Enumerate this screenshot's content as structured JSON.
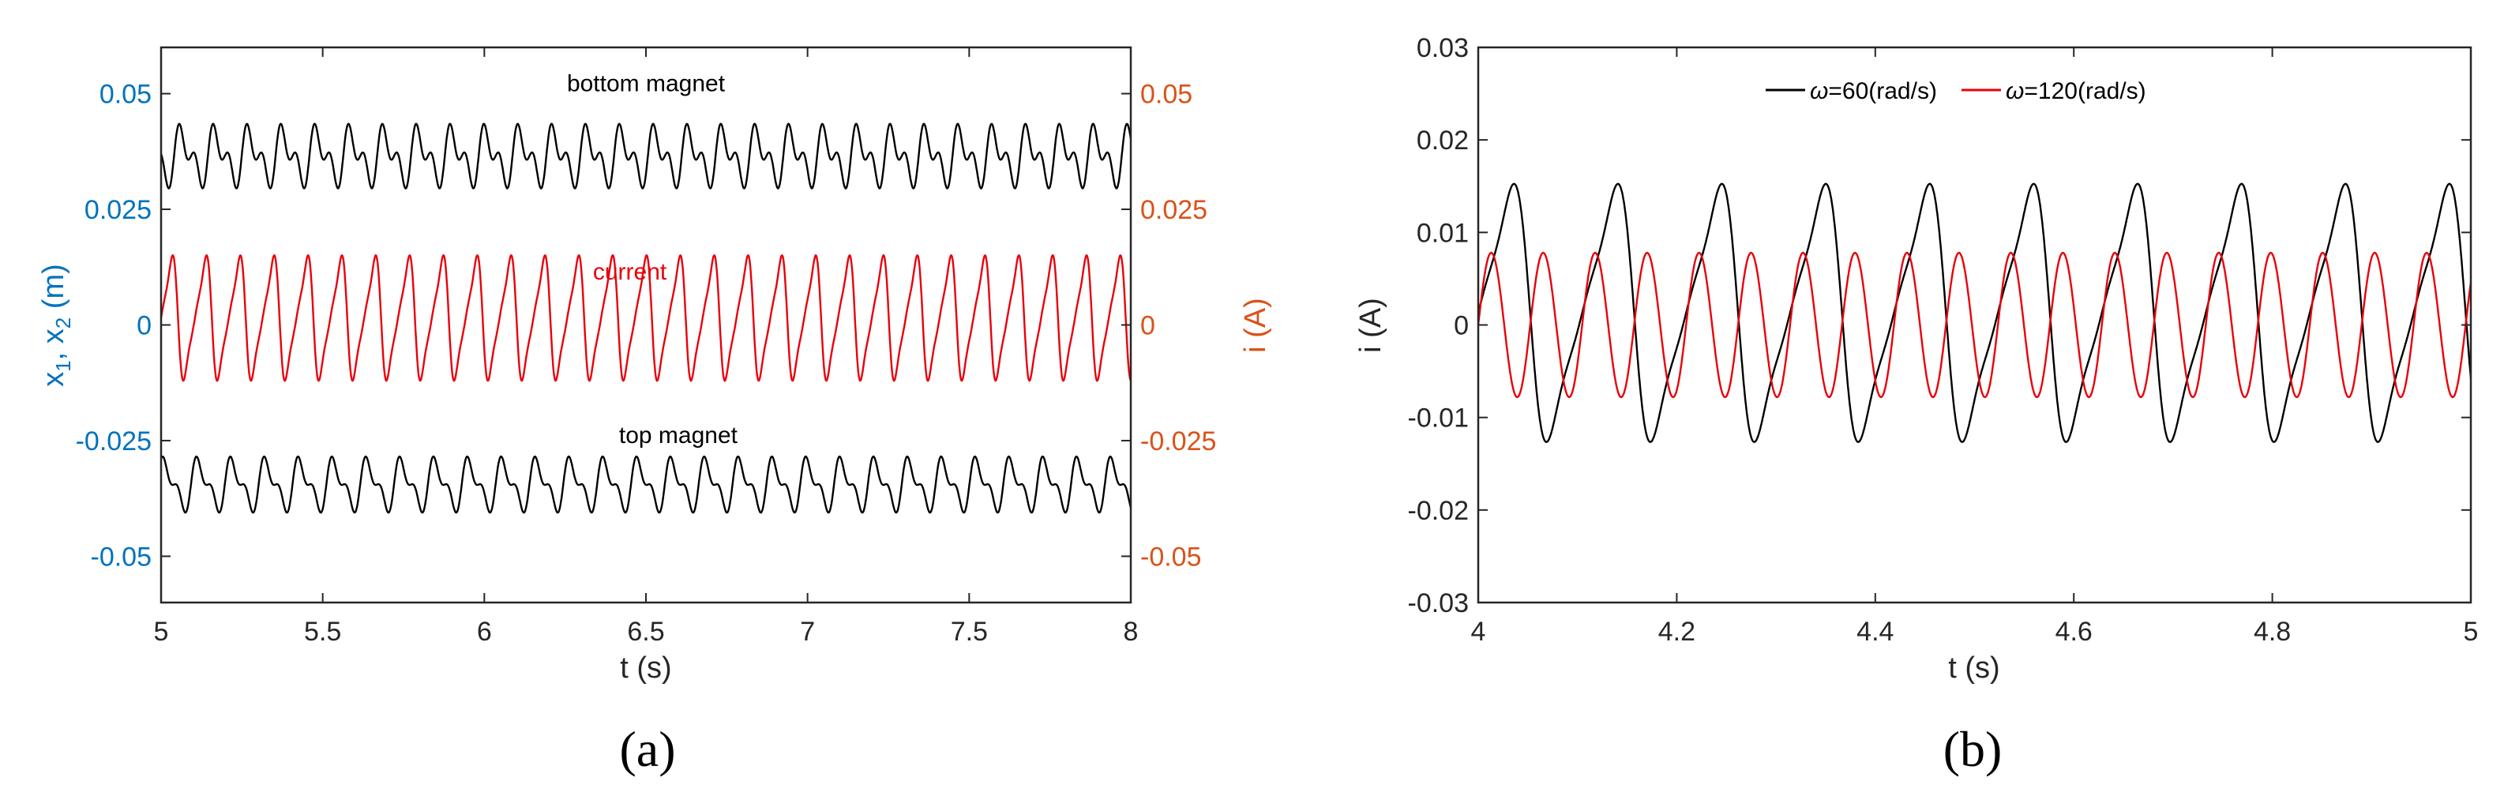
{
  "colors": {
    "black": "#000000",
    "red": "#e8000b",
    "left_axis": "#0072bd",
    "right_axis": "#d95319",
    "frame": "#262626"
  },
  "chart_data": [
    {
      "panel_label": "(a)",
      "type": "line",
      "xlabel": "t (s)",
      "ylabel_left_parts": [
        "x",
        "1",
        ", x",
        "2",
        " (m)"
      ],
      "ylabel_right": "i (A)",
      "xlim": [
        5,
        8
      ],
      "ylim_left": [
        -0.06,
        0.06
      ],
      "ylim_right": [
        -0.06,
        0.06
      ],
      "x_ticks": [
        5,
        5.5,
        6,
        6.5,
        7,
        7.5,
        8
      ],
      "x_tick_labels": [
        "5",
        "5.5",
        "6",
        "6.5",
        "7",
        "7.5",
        "8"
      ],
      "y_ticks_left": [
        0.05,
        0.025,
        0,
        -0.025,
        -0.05
      ],
      "y_tick_labels_left": [
        "0.05",
        "0.025",
        "0",
        "-0.025",
        "-0.05"
      ],
      "y_ticks_right": [
        0.05,
        0.025,
        0,
        -0.025,
        -0.05
      ],
      "y_tick_labels_right": [
        "0.05",
        "0.025",
        "0",
        "-0.025",
        "-0.05"
      ],
      "annotations": [
        {
          "text": "bottom magnet",
          "x": 6.5,
          "y": 0.0505,
          "color": "black"
        },
        {
          "text": "current",
          "x": 6.45,
          "y": 0.0098,
          "color": "red"
        },
        {
          "text": "top magnet",
          "x": 6.6,
          "y": -0.0255,
          "color": "black"
        }
      ],
      "series": [
        {
          "label": "bottom magnet",
          "axis": "left",
          "color": "black",
          "kind": "two-harmonic",
          "offset": 0.0365,
          "amp1": 0.0045,
          "amp2": 0.0035,
          "freq_hz": 9.55,
          "t0": 5.04,
          "min": 0.0325,
          "max": 0.0455
        },
        {
          "label": "current",
          "axis": "right",
          "color": "red",
          "kind": "skewed",
          "offset": 0.0015,
          "amp": 0.0135,
          "freq_hz": 9.55,
          "t0": 5.0,
          "min": -0.0125,
          "max": 0.0155
        },
        {
          "label": "top magnet",
          "axis": "left",
          "color": "black",
          "kind": "two-harmonic",
          "offset": -0.0345,
          "amp1": -0.0045,
          "amp2": 0.0025,
          "freq_hz": 9.55,
          "t0": 5.04,
          "min": -0.0415,
          "max": -0.029
        }
      ]
    },
    {
      "panel_label": "(b)",
      "type": "line",
      "xlabel": "t (s)",
      "ylabel": "i (A)",
      "xlim": [
        4,
        5
      ],
      "ylim": [
        -0.03,
        0.03
      ],
      "x_ticks": [
        4,
        4.2,
        4.4,
        4.6,
        4.8,
        5
      ],
      "x_tick_labels": [
        "4",
        "4.2",
        "4.4",
        "4.6",
        "4.8",
        "5"
      ],
      "y_ticks": [
        0.03,
        0.02,
        0.01,
        0,
        -0.01,
        -0.02,
        -0.03
      ],
      "y_tick_labels": [
        "0.03",
        "0.02",
        "0.01",
        "0",
        "-0.01",
        "-0.02",
        "-0.03"
      ],
      "legend": {
        "location": "top-center",
        "entries": [
          {
            "symbol": "ω",
            "text": "=60(rad/s)",
            "color": "black"
          },
          {
            "symbol": "ω",
            "text": "=120(rad/s)",
            "color": "red"
          }
        ]
      },
      "series": [
        {
          "label": "ω=60(rad/s)",
          "color": "black",
          "kind": "skewed",
          "offset": 0.0013,
          "amp": 0.0139,
          "freq_hz": 9.55,
          "t0": 4.0,
          "min": -0.0126,
          "max": 0.0152
        },
        {
          "label": "ω=120(rad/s)",
          "color": "red",
          "kind": "sine",
          "offset": 0.0,
          "amp": 0.0078,
          "freq_hz": 19.1,
          "t0": 4.0,
          "min": -0.0078,
          "max": 0.0078
        }
      ]
    }
  ]
}
